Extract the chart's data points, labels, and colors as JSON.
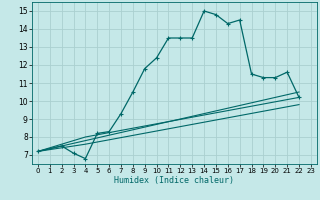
{
  "xlabel": "Humidex (Indice chaleur)",
  "bg_color": "#c5e8e8",
  "grid_color": "#aad0d0",
  "line_color": "#006868",
  "xlim": [
    -0.5,
    23.5
  ],
  "ylim": [
    6.5,
    15.5
  ],
  "yticks": [
    7,
    8,
    9,
    10,
    11,
    12,
    13,
    14,
    15
  ],
  "xticks": [
    0,
    1,
    2,
    3,
    4,
    5,
    6,
    7,
    8,
    9,
    10,
    11,
    12,
    13,
    14,
    15,
    16,
    17,
    18,
    19,
    20,
    21,
    22,
    23
  ],
  "series1_x": [
    0,
    2,
    3,
    4,
    5,
    6,
    7,
    8,
    9,
    10,
    11,
    12,
    13,
    14,
    15,
    16,
    17,
    18,
    19,
    20,
    21,
    22
  ],
  "series1_y": [
    7.2,
    7.5,
    7.1,
    6.8,
    8.2,
    8.3,
    9.3,
    10.5,
    11.8,
    12.4,
    13.5,
    13.5,
    13.5,
    15.0,
    14.8,
    14.3,
    14.5,
    11.5,
    11.3,
    11.3,
    11.6,
    10.2
  ],
  "series2_x": [
    0,
    4,
    22
  ],
  "series2_y": [
    7.2,
    8.0,
    10.2
  ],
  "series3_x": [
    0,
    4,
    22
  ],
  "series3_y": [
    7.2,
    7.8,
    10.5
  ],
  "series4_x": [
    0,
    4,
    22
  ],
  "series4_y": [
    7.2,
    7.6,
    9.8
  ]
}
